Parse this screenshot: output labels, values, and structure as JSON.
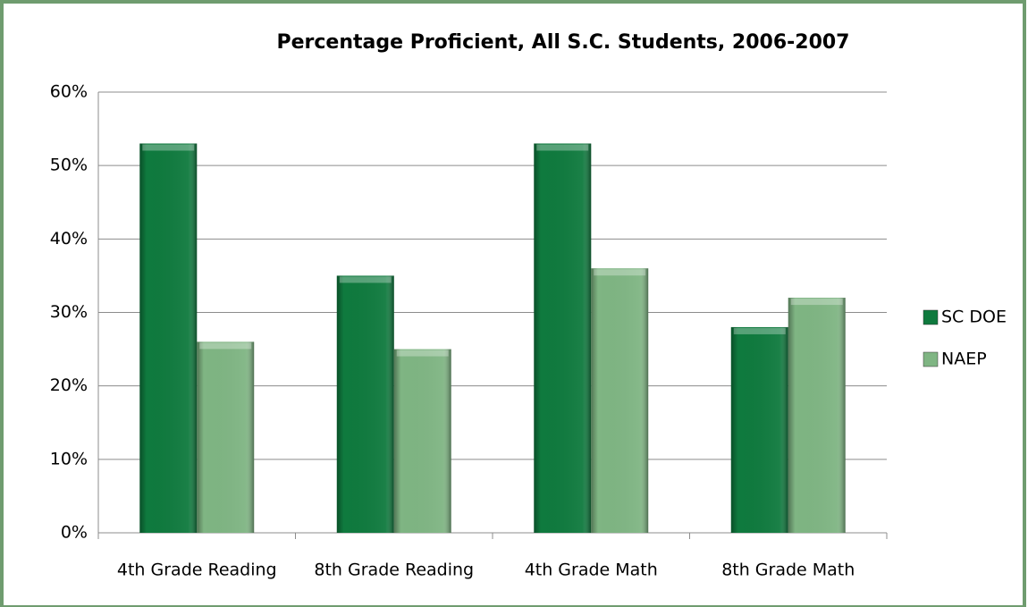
{
  "chart_data": {
    "type": "bar",
    "title": "Percentage Proficient, All S.C. Students, 2006-2007",
    "categories": [
      "4th Grade Reading",
      "8th Grade Reading",
      "4th Grade Math",
      "8th Grade Math"
    ],
    "series": [
      {
        "name": "SC DOE",
        "color": "#0f7a3e",
        "values": [
          53,
          35,
          53,
          28
        ]
      },
      {
        "name": "NAEP",
        "color": "#7fb583",
        "values": [
          26,
          25,
          36,
          32
        ]
      }
    ],
    "ylim": [
      0,
      60
    ],
    "yticks": [
      {
        "value": 0,
        "label": "0%"
      },
      {
        "value": 10,
        "label": "10%"
      },
      {
        "value": 20,
        "label": "20%"
      },
      {
        "value": 30,
        "label": "30%"
      },
      {
        "value": 40,
        "label": "40%"
      },
      {
        "value": 50,
        "label": "50%"
      },
      {
        "value": 60,
        "label": "60%"
      }
    ],
    "grid": true,
    "legend": "right"
  }
}
